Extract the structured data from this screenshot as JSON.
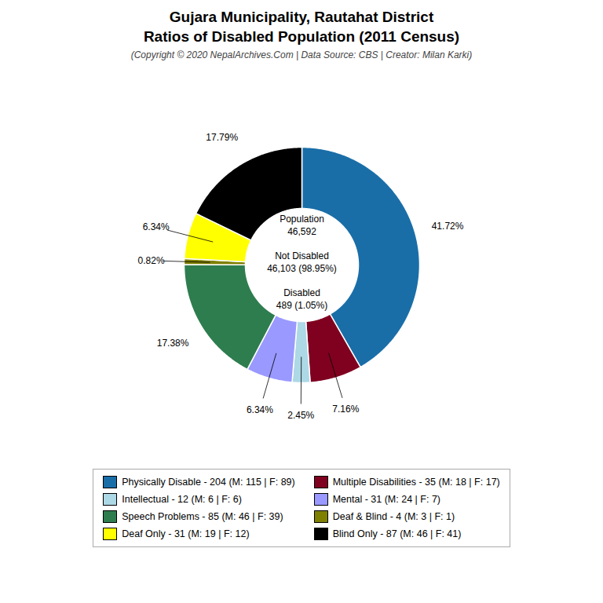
{
  "chart_data": {
    "type": "donut",
    "title": "Gujara Municipality, Rautahat District\nRatios of Disabled Population (2011 Census)",
    "subtitle": "(Copyright © 2020 NepalArchives.Com | Data Source: CBS | Creator: Milan Karki)",
    "categories": [
      "Physically Disable - 204 (M: 115 | F: 89)",
      "Multiple Disabilities - 35 (M: 18 | F: 17)",
      "Intellectual - 12 (M: 6 | F: 6)",
      "Mental - 31 (M: 24 | F: 7)",
      "Speech Problems - 85 (M: 46 | F: 39)",
      "Deaf & Blind - 4 (M: 3 | F: 1)",
      "Deaf Only - 31 (M: 19 | F: 12)",
      "Blind Only - 87 (M: 46 | F: 41)"
    ],
    "values": [
      41.72,
      7.16,
      2.45,
      6.34,
      17.38,
      0.82,
      6.34,
      17.79
    ],
    "value_labels": [
      "41.72%",
      "7.16%",
      "2.45%",
      "6.34%",
      "17.38%",
      "0.82%",
      "6.34%",
      "17.79%"
    ],
    "colors": [
      "#1a6ea8",
      "#800020",
      "#add8e6",
      "#9999ff",
      "#2e7d4f",
      "#808000",
      "#ffff00",
      "#000000"
    ],
    "annotations": [
      "Population\n46,592",
      "Not Disabled\n46,103 (98.95%)",
      "Disabled\n489 (1.05%)"
    ],
    "data_labels": true,
    "legend": "bottom"
  }
}
